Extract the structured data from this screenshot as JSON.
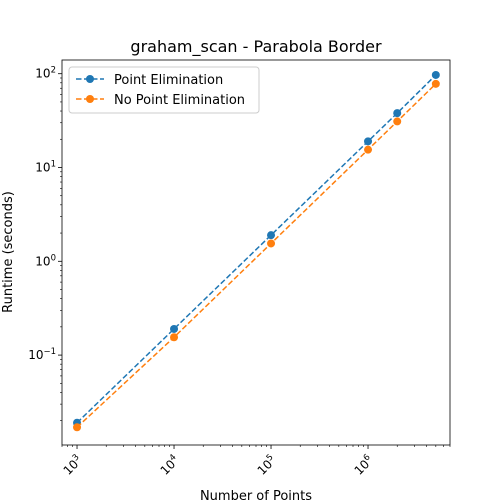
{
  "chart_data": {
    "type": "line",
    "title": "graham_scan - Parabola Border",
    "xlabel": "Number of Points",
    "ylabel": "Runtime (seconds)",
    "xscale": "log",
    "yscale": "log",
    "xlim": [
      700,
      7000000
    ],
    "ylim": [
      0.011,
      140
    ],
    "xticks": [
      {
        "value": 1000,
        "base": "10",
        "exp": "3"
      },
      {
        "value": 10000,
        "base": "10",
        "exp": "4"
      },
      {
        "value": 100000,
        "base": "10",
        "exp": "5"
      },
      {
        "value": 1000000,
        "base": "10",
        "exp": "6"
      }
    ],
    "yticks": [
      {
        "value": 0.1,
        "base": "10",
        "exp": "−1"
      },
      {
        "value": 1,
        "base": "10",
        "exp": "0"
      },
      {
        "value": 10,
        "base": "10",
        "exp": "1"
      },
      {
        "value": 100,
        "base": "10",
        "exp": "2"
      }
    ],
    "grid": false,
    "legend_position": "top-left",
    "x": [
      1000,
      10000,
      100000,
      1000000,
      2000000,
      5000000
    ],
    "series": [
      {
        "name": "Point Elimination",
        "color": "#1f77b4",
        "line_style": "dashed",
        "marker": "circle",
        "values": [
          0.019,
          0.19,
          1.9,
          19,
          38,
          97
        ]
      },
      {
        "name": "No Point Elimination",
        "color": "#ff7f0e",
        "line_style": "dashed",
        "marker": "circle",
        "values": [
          0.017,
          0.155,
          1.55,
          15.5,
          31,
          78
        ]
      }
    ]
  }
}
